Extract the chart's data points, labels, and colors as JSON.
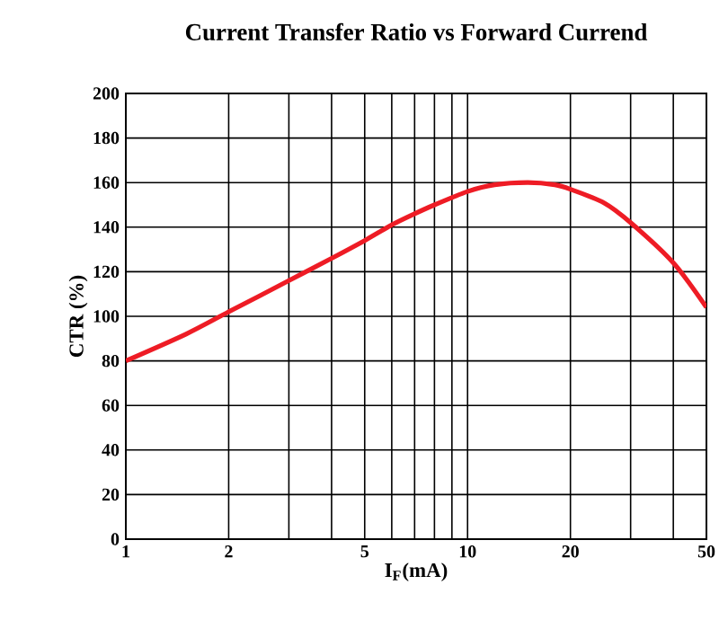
{
  "chart_data": {
    "type": "line",
    "title": "Current Transfer Ratio vs Forward Currend",
    "xlabel": "I$_{F}$(mA)",
    "ylabel": "CTR (%)",
    "log": "x",
    "grid": true,
    "marker": "none",
    "line_style": "solid",
    "xlim": [
      1,
      50
    ],
    "ylim": [
      0,
      200
    ],
    "xticks": [
      1,
      2,
      {
        "value": 3,
        "label": null
      },
      {
        "value": 4,
        "label": null
      },
      5,
      {
        "value": 6,
        "label": null
      },
      {
        "value": 7,
        "label": null
      },
      {
        "value": 8,
        "label": null
      },
      {
        "value": 9,
        "label": null
      },
      10,
      20,
      {
        "value": 30,
        "label": null
      },
      {
        "value": 40,
        "label": null
      },
      50
    ],
    "yticks": [
      0,
      20,
      40,
      60,
      80,
      100,
      120,
      140,
      160,
      180,
      200
    ],
    "x": [
      1,
      1.5,
      2,
      3,
      4,
      5,
      6,
      7,
      8,
      10,
      12,
      15,
      18,
      20,
      25,
      30,
      40,
      50
    ],
    "series": [
      {
        "color": "#ee1c25",
        "values": [
          80,
          92,
          102,
          116,
          126,
          134,
          141,
          146,
          150,
          156,
          159,
          160,
          159,
          157,
          151,
          142,
          124,
          104
        ]
      }
    ]
  }
}
